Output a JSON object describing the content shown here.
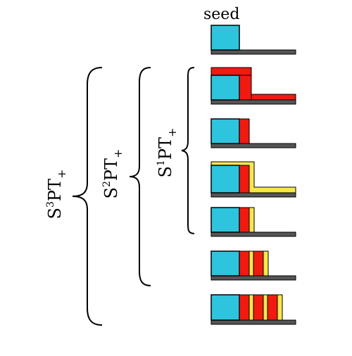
{
  "seed_label": "seed",
  "braces": [
    {
      "id": "s1",
      "label": "S",
      "sup": "1",
      "main": "PT",
      "sub": "+"
    },
    {
      "id": "s2",
      "label": "S",
      "sup": "2",
      "main": "PT",
      "sub": "+"
    },
    {
      "id": "s3",
      "label": "S",
      "sup": "3",
      "main": "PT",
      "sub": "+"
    }
  ],
  "colors": {
    "cyan": "#2ec4dd",
    "red": "#f01a10",
    "yellow": "#f6e84a",
    "base": "#555555",
    "outline": "#000000"
  }
}
